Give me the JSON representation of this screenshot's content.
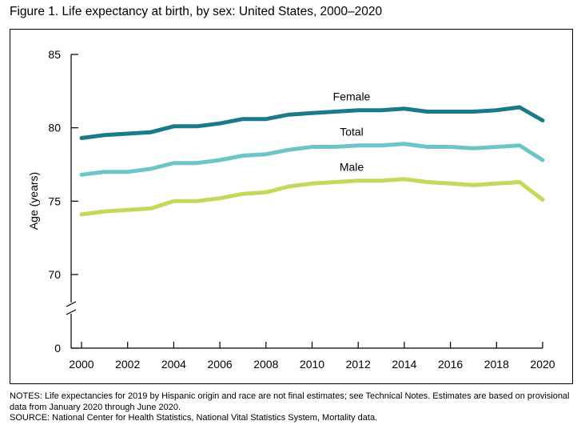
{
  "title": "Figure 1. Life expectancy at birth, by sex: United States, 2000–2020",
  "notes": [
    "NOTES: Life expectancies for 2019 by Hispanic origin and race are not final estimates; see Technical Notes. Estimates are based on provisional data from January 2020 through June 2020.",
    "SOURCE: National Center for Health Statistics, National Vital Statistics System, Mortality data."
  ],
  "chart_data": {
    "type": "line",
    "title": "Figure 1. Life expectancy at birth, by sex: United States, 2000–2020",
    "xlabel": "",
    "ylabel": "Age (years)",
    "x": [
      2000,
      2001,
      2002,
      2003,
      2004,
      2005,
      2006,
      2007,
      2008,
      2009,
      2010,
      2011,
      2012,
      2013,
      2014,
      2015,
      2016,
      2017,
      2018,
      2019,
      2020
    ],
    "xticks": [
      "2000",
      "2002",
      "2004",
      "2006",
      "2008",
      "2010",
      "2012",
      "2014",
      "2016",
      "2018",
      "2020"
    ],
    "yticks": [
      "0",
      "70",
      "75",
      "80",
      "85"
    ],
    "ylim": [
      70,
      85
    ],
    "axis_break": "between 0 and 70",
    "grid": false,
    "series": [
      {
        "name": "Female",
        "color": "#1a7a8a",
        "values": [
          79.3,
          79.5,
          79.6,
          79.7,
          80.1,
          80.1,
          80.3,
          80.6,
          80.6,
          80.9,
          81.0,
          81.1,
          81.2,
          81.2,
          81.3,
          81.1,
          81.1,
          81.1,
          81.2,
          81.4,
          80.5
        ]
      },
      {
        "name": "Total",
        "color": "#6cc5c6",
        "values": [
          76.8,
          77.0,
          77.0,
          77.2,
          77.6,
          77.6,
          77.8,
          78.1,
          78.2,
          78.5,
          78.7,
          78.7,
          78.8,
          78.8,
          78.9,
          78.7,
          78.7,
          78.6,
          78.7,
          78.8,
          77.8
        ]
      },
      {
        "name": "Male",
        "color": "#c5d85a",
        "values": [
          74.1,
          74.3,
          74.4,
          74.5,
          75.0,
          75.0,
          75.2,
          75.5,
          75.6,
          76.0,
          76.2,
          76.3,
          76.4,
          76.4,
          76.5,
          76.3,
          76.2,
          76.1,
          76.2,
          76.3,
          75.1
        ]
      }
    ]
  }
}
